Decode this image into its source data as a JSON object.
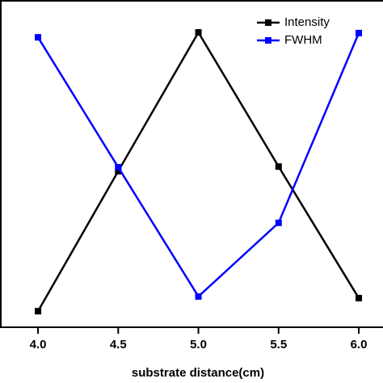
{
  "chart_data": {
    "type": "line",
    "x_label": "substrate distance(cm)",
    "x": [
      4.0,
      4.5,
      5.0,
      5.5,
      6.0
    ],
    "series": [
      {
        "name": "Intensity",
        "color": "#000000",
        "values": [
          4.9,
          47.7,
          90.1,
          49.1,
          8.9
        ]
      },
      {
        "name": "FWHM",
        "color": "#0000ff",
        "values": [
          88.6,
          48.9,
          9.4,
          31.9,
          89.9
        ]
      }
    ],
    "xlim": [
      3.763,
      6.151
    ],
    "ylim": [
      0,
      100
    ],
    "xticks": [
      {
        "value": 4.0,
        "label": "4.0"
      },
      4.5,
      {
        "value": 5.0,
        "label": "5.0"
      },
      5.5,
      {
        "value": 6.0,
        "label": "6.0"
      }
    ],
    "legend": "top-right"
  }
}
